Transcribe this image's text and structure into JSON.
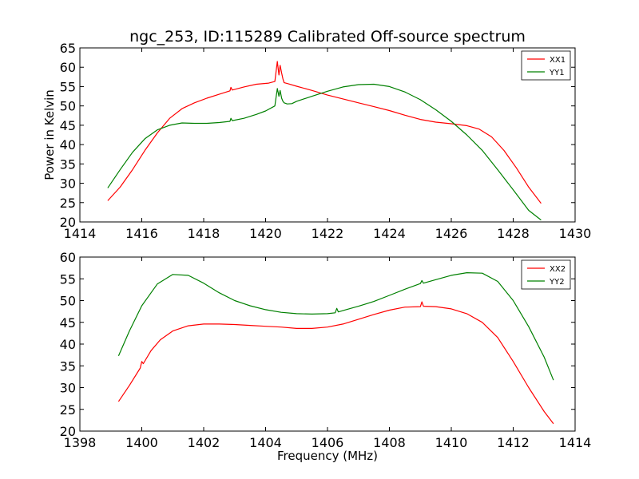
{
  "figure": {
    "title": "ngc_253, ID:115289 Calibrated Off-source spectrum"
  },
  "chart_data": [
    {
      "type": "line",
      "title": "ngc_253, ID:115289 Calibrated Off-source spectrum",
      "xlabel": "",
      "ylabel": "Power in Kelvin",
      "xlim": [
        1414,
        1430
      ],
      "ylim": [
        20,
        65
      ],
      "xticks": [
        1414,
        1416,
        1418,
        1420,
        1422,
        1424,
        1426,
        1428,
        1430
      ],
      "yticks": [
        20,
        25,
        30,
        35,
        40,
        45,
        50,
        55,
        60,
        65
      ],
      "legend_position": "top-right",
      "series": [
        {
          "name": "XX1",
          "color": "#ff0000",
          "x": [
            1414.9,
            1415.3,
            1415.7,
            1416.1,
            1416.5,
            1416.9,
            1417.3,
            1417.7,
            1418.1,
            1418.5,
            1418.85,
            1418.88,
            1418.92,
            1419.3,
            1419.7,
            1420.1,
            1420.3,
            1420.38,
            1420.43,
            1420.47,
            1420.52,
            1420.56,
            1420.6,
            1420.7,
            1421.0,
            1421.5,
            1422.0,
            1422.5,
            1423.0,
            1423.5,
            1424.0,
            1424.5,
            1425.0,
            1425.5,
            1426.0,
            1426.5,
            1426.9,
            1427.3,
            1427.7,
            1428.1,
            1428.5,
            1428.9
          ],
          "y": [
            25.5,
            29.0,
            33.5,
            38.5,
            43.0,
            46.8,
            49.3,
            50.8,
            52.0,
            53.0,
            53.9,
            54.8,
            54.1,
            54.9,
            55.6,
            55.9,
            56.3,
            61.5,
            58.0,
            60.5,
            58.5,
            57.0,
            56.0,
            55.8,
            55.1,
            54.0,
            52.8,
            51.8,
            50.8,
            49.8,
            48.8,
            47.6,
            46.5,
            45.8,
            45.4,
            44.9,
            44.0,
            42.0,
            38.5,
            34.0,
            29.0,
            24.8
          ]
        },
        {
          "name": "YY1",
          "color": "#008000",
          "x": [
            1414.9,
            1415.3,
            1415.7,
            1416.1,
            1416.5,
            1416.9,
            1417.3,
            1417.7,
            1418.1,
            1418.5,
            1418.85,
            1418.88,
            1418.92,
            1419.3,
            1419.7,
            1420.0,
            1420.3,
            1420.38,
            1420.43,
            1420.47,
            1420.52,
            1420.56,
            1420.6,
            1420.7,
            1420.85,
            1421.0,
            1421.5,
            1422.0,
            1422.5,
            1423.0,
            1423.5,
            1424.0,
            1424.5,
            1425.0,
            1425.5,
            1426.0,
            1426.5,
            1427.0,
            1427.5,
            1428.0,
            1428.5,
            1428.9
          ],
          "y": [
            28.8,
            33.5,
            38.0,
            41.5,
            43.8,
            45.0,
            45.6,
            45.5,
            45.5,
            45.7,
            46.0,
            46.8,
            46.2,
            46.8,
            47.8,
            48.7,
            50.0,
            54.5,
            52.5,
            54.0,
            52.0,
            51.2,
            50.8,
            50.5,
            50.6,
            51.2,
            52.5,
            53.8,
            54.9,
            55.5,
            55.6,
            55.0,
            53.6,
            51.6,
            49.0,
            46.0,
            42.5,
            38.5,
            33.5,
            28.3,
            23.0,
            20.5
          ]
        }
      ]
    },
    {
      "type": "line",
      "title": "",
      "xlabel": "Frequency (MHz)",
      "ylabel": "",
      "xlim": [
        1398,
        1414
      ],
      "ylim": [
        20,
        60
      ],
      "xticks": [
        1398,
        1400,
        1402,
        1404,
        1406,
        1408,
        1410,
        1412,
        1414
      ],
      "yticks": [
        20,
        25,
        30,
        35,
        40,
        45,
        50,
        55,
        60
      ],
      "legend_position": "top-right",
      "series": [
        {
          "name": "XX2",
          "color": "#ff0000",
          "x": [
            1399.25,
            1399.6,
            1399.95,
            1400.0,
            1400.05,
            1400.3,
            1400.6,
            1401.0,
            1401.5,
            1402.0,
            1402.5,
            1403.0,
            1403.5,
            1404.0,
            1404.5,
            1405.0,
            1405.5,
            1406.0,
            1406.5,
            1407.0,
            1407.5,
            1408.0,
            1408.5,
            1409.0,
            1409.05,
            1409.1,
            1409.5,
            1410.0,
            1410.5,
            1411.0,
            1411.5,
            1412.0,
            1412.5,
            1413.0,
            1413.3
          ],
          "y": [
            26.8,
            30.5,
            34.5,
            36.0,
            35.5,
            38.5,
            41.0,
            43.0,
            44.2,
            44.6,
            44.6,
            44.5,
            44.3,
            44.1,
            43.9,
            43.6,
            43.6,
            43.9,
            44.6,
            45.7,
            46.8,
            47.8,
            48.5,
            48.6,
            49.7,
            48.7,
            48.6,
            48.1,
            47.0,
            45.0,
            41.5,
            36.0,
            30.0,
            24.5,
            21.7
          ]
        },
        {
          "name": "YY2",
          "color": "#008000",
          "x": [
            1399.25,
            1399.6,
            1400.0,
            1400.5,
            1401.0,
            1401.5,
            1402.0,
            1402.5,
            1403.0,
            1403.5,
            1404.0,
            1404.5,
            1405.0,
            1405.5,
            1406.0,
            1406.25,
            1406.3,
            1406.35,
            1406.6,
            1407.0,
            1407.5,
            1408.0,
            1408.5,
            1409.0,
            1409.05,
            1409.1,
            1409.5,
            1410.0,
            1410.5,
            1411.0,
            1411.5,
            1412.0,
            1412.5,
            1413.0,
            1413.3
          ],
          "y": [
            37.3,
            43.0,
            48.8,
            53.8,
            56.0,
            55.8,
            54.0,
            51.8,
            50.0,
            48.8,
            47.9,
            47.3,
            47.0,
            46.9,
            47.0,
            47.2,
            48.2,
            47.4,
            47.9,
            48.7,
            49.8,
            51.2,
            52.6,
            53.9,
            54.6,
            54.0,
            54.8,
            55.8,
            56.4,
            56.3,
            54.4,
            50.0,
            44.0,
            37.0,
            31.7
          ]
        }
      ]
    }
  ]
}
